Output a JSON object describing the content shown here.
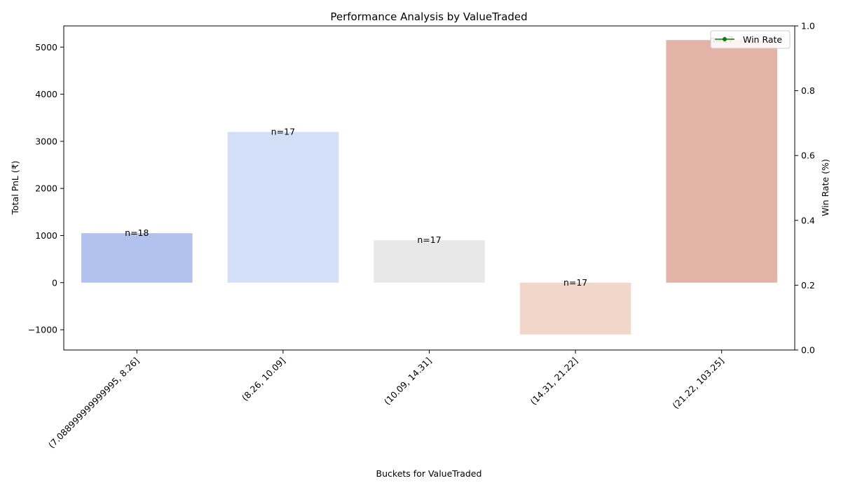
{
  "chart_data": {
    "type": "bar",
    "title": "Performance Analysis by ValueTraded",
    "xlabel": "Buckets for ValueTraded",
    "ylabel": "Total PnL (₹)",
    "y2label": "Win Rate (%)",
    "categories": [
      "(7.088999999999995, 8.26]",
      "(8.26, 10.09]",
      "(10.09, 14.31]",
      "(14.31, 21.22]",
      "(21.22, 103.25]"
    ],
    "values": [
      1050,
      3200,
      900,
      -1100,
      5150
    ],
    "counts": [
      "n=18",
      "n=17",
      "n=17",
      "n=17",
      "n=17"
    ],
    "bar_colors": [
      "#b2c2ee",
      "#d3dff7",
      "#e8e8e8",
      "#f1d6ca",
      "#e4b3a8"
    ],
    "ylim": [
      -1430,
      5450
    ],
    "yticks": [
      -1000,
      0,
      1000,
      2000,
      3000,
      4000,
      5000
    ],
    "ytick_labels": [
      "−1000",
      "0",
      "1000",
      "2000",
      "3000",
      "4000",
      "5000"
    ],
    "y2lim": [
      0,
      1
    ],
    "y2ticks": [
      0.0,
      0.2,
      0.4,
      0.6,
      0.8,
      1.0
    ],
    "y2tick_labels": [
      "0.0",
      "0.2",
      "0.4",
      "0.6",
      "0.8",
      "1.0"
    ],
    "legend": {
      "label": "Win Rate",
      "placement": "top-right",
      "color": "#008000"
    },
    "ylabel2_color": "#008000",
    "grid": false
  }
}
